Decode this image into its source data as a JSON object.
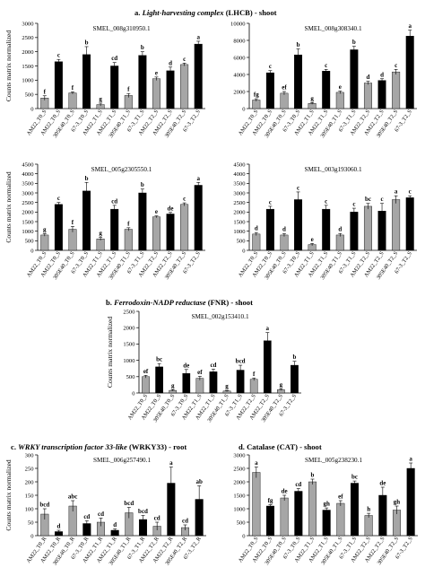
{
  "sections": {
    "a": {
      "prefix": "a. ",
      "italic": "Light-harvesting complex",
      "suffix": " (LHCB) - shoot"
    },
    "b": {
      "prefix": "b. ",
      "italic": "Ferrodoxin-NADP reductase",
      "suffix": " (FNR) - shoot"
    },
    "c": {
      "prefix": "c. ",
      "italic": "WRKY transcription factor 33-like",
      "suffix": " (WRKY33) - root"
    },
    "d": {
      "prefix": "d. ",
      "italic": "",
      "suffix": "Catalase (CAT) - shoot"
    }
  },
  "colors": {
    "light": "#a6a6a6",
    "dark": "#000000"
  },
  "chart_data": [
    {
      "type": "bar",
      "title": "SMEL_008g310950.1",
      "ylabel": "Counts matrix normalized",
      "ylim": [
        0,
        3000
      ],
      "yticks": [
        0,
        500,
        1000,
        1500,
        2000,
        2500,
        3000
      ],
      "categories": [
        "AM22_T0_S",
        "AM22_T0_S",
        "305E40_T0_S",
        "67-3_T0_S",
        "AM22_T1_S",
        "AM22_T1_S",
        "305E40_T1_S",
        "67-3_T1_S",
        "AM22_T2_S",
        "AM22_T2_S",
        "305E40_T2_S",
        "67-3_T2_S"
      ],
      "bar_colors": [
        "light",
        "dark",
        "light",
        "dark",
        "light",
        "dark",
        "light",
        "dark",
        "light",
        "dark",
        "light",
        "dark"
      ],
      "values": [
        370,
        1650,
        550,
        1900,
        140,
        1500,
        460,
        1870,
        1050,
        1330,
        1550,
        2270
      ],
      "errors": [
        80,
        80,
        40,
        280,
        50,
        120,
        70,
        130,
        60,
        130,
        50,
        100
      ],
      "letters": [
        "f",
        "c",
        "f",
        "b",
        "g",
        "cd",
        "f",
        "b",
        "e",
        "d",
        "c",
        "a"
      ]
    },
    {
      "type": "bar",
      "title": "SMEL_008g308340.1",
      "ylabel": "",
      "ylim": [
        0,
        10000
      ],
      "yticks": [
        0,
        2000,
        4000,
        6000,
        8000,
        10000
      ],
      "categories": [
        "AM22_T0_S",
        "AM22_T0_S",
        "305E40_T0_S",
        "67-3_T0_S",
        "AM22_T1_S",
        "AM22_T1_S",
        "305E40_T1_S",
        "67-3_T1_S",
        "AM22_T2_S",
        "AM22_T2_S",
        "305E40_T2_S",
        "67-3_T2_S"
      ],
      "bar_colors": [
        "light",
        "dark",
        "light",
        "dark",
        "light",
        "dark",
        "light",
        "dark",
        "light",
        "dark",
        "light",
        "dark"
      ],
      "values": [
        1000,
        4200,
        1800,
        6300,
        600,
        4400,
        1900,
        6900,
        3000,
        3300,
        4300,
        8500
      ],
      "errors": [
        150,
        250,
        200,
        700,
        100,
        200,
        150,
        400,
        200,
        200,
        300,
        700
      ],
      "letters": [
        "fg",
        "c",
        "ef",
        "b",
        "g",
        "c",
        "e",
        "b",
        "d",
        "d",
        "c",
        "a"
      ]
    },
    {
      "type": "bar",
      "title": "SMEL_005g2305550.1",
      "ylabel": "Counts matrix normalized",
      "ylim": [
        0,
        4500
      ],
      "yticks": [
        0,
        500,
        1000,
        1500,
        2000,
        2500,
        3000,
        3500,
        4000,
        4500
      ],
      "categories": [
        "AM22_T0_S",
        "AM22_T0_S",
        "305E40_T0_S",
        "67-3_T0_S",
        "AM22_T1_S",
        "AM22_T1_S",
        "305E40_T1_S",
        "67-3_T1_S",
        "AM22_T2_S",
        "AM22_T2_S",
        "305E40_T2_S",
        "67-3_T2_S"
      ],
      "bar_colors": [
        "light",
        "dark",
        "light",
        "dark",
        "light",
        "dark",
        "light",
        "dark",
        "light",
        "dark",
        "light",
        "dark"
      ],
      "values": [
        800,
        2400,
        1100,
        3100,
        600,
        2150,
        1100,
        3000,
        1750,
        1900,
        2400,
        3400
      ],
      "errors": [
        60,
        100,
        150,
        450,
        80,
        200,
        80,
        200,
        50,
        80,
        80,
        150
      ],
      "letters": [
        "g",
        "c",
        "f",
        "b",
        "g",
        "cd",
        "f",
        "b",
        "e",
        "de",
        "c",
        "a"
      ]
    },
    {
      "type": "bar",
      "title": "SMEL_003g193060.1",
      "ylabel": "",
      "ylim": [
        0,
        4500
      ],
      "yticks": [
        0,
        500,
        1000,
        1500,
        2000,
        2500,
        3000,
        3500,
        4000,
        4500
      ],
      "categories": [
        "AM22_T0_S",
        "AM22_T0_S",
        "305E40_T0_S",
        "67-3_T0_S",
        "AM22_T1_S",
        "AM22_T1_S",
        "305E40_T1_S",
        "67-3_T1_S",
        "AM22_T2_S",
        "AM22_T2_S",
        "305E40_T2_S",
        "67-3_T2_S"
      ],
      "bar_colors": [
        "light",
        "dark",
        "light",
        "dark",
        "light",
        "dark",
        "light",
        "dark",
        "light",
        "dark",
        "light",
        "dark"
      ],
      "values": [
        850,
        2150,
        800,
        2650,
        300,
        2150,
        800,
        2000,
        2300,
        2050,
        2650,
        2750
      ],
      "errors": [
        80,
        150,
        80,
        400,
        60,
        200,
        80,
        200,
        150,
        400,
        200,
        100
      ],
      "letters": [
        "d",
        "c",
        "d",
        "c",
        "e",
        "c",
        "d",
        "c",
        "bc",
        "c",
        "a",
        "c"
      ]
    },
    {
      "type": "bar",
      "title": "SMEL_002g153410.1",
      "ylabel": "Counts matrix normalized",
      "ylim": [
        0,
        2500
      ],
      "yticks": [
        0,
        500,
        1000,
        1500,
        2000,
        2500
      ],
      "categories": [
        "AM22_T0_S",
        "AM22_T0_S",
        "305E40_T0_S",
        "67-3_T0_S",
        "AM22_T1_S",
        "AM22_T1_S",
        "305E40_T1_S",
        "67-3_T1_S",
        "AM22_T2_S",
        "AM22_T2_S",
        "305E40_T2_S",
        "67-3_T2_S"
      ],
      "bar_colors": [
        "light",
        "dark",
        "light",
        "dark",
        "light",
        "dark",
        "light",
        "dark",
        "light",
        "dark",
        "light",
        "dark"
      ],
      "values": [
        500,
        800,
        80,
        600,
        450,
        650,
        60,
        700,
        420,
        1600,
        100,
        850
      ],
      "errors": [
        40,
        100,
        20,
        120,
        60,
        80,
        20,
        150,
        40,
        250,
        20,
        120
      ],
      "letters": [
        "ef",
        "bc",
        "g",
        "de",
        "ef",
        "cd",
        "g",
        "bcd",
        "f",
        "a",
        "g",
        "b"
      ]
    },
    {
      "type": "bar",
      "title": "SMEL_006g257490.1",
      "ylabel": "Counts matrix normalized",
      "ylim": [
        0,
        300
      ],
      "yticks": [
        0,
        50,
        100,
        150,
        200,
        250,
        300
      ],
      "categories": [
        "AM22_T0_R",
        "AM22_T0_R",
        "305E40_T0_R",
        "67-3_T0_R",
        "AM22_T1_R",
        "AM22_T1_R",
        "305E40_T1_R",
        "67-3_T1_R",
        "AM22_T2_R",
        "AM22_T2_R",
        "305E40_T2_R",
        "67-3_T2_R"
      ],
      "bar_colors": [
        "light",
        "dark",
        "light",
        "dark",
        "light",
        "dark",
        "light",
        "dark",
        "light",
        "dark",
        "light",
        "dark"
      ],
      "values": [
        80,
        15,
        110,
        45,
        50,
        20,
        85,
        60,
        35,
        195,
        30,
        135
      ],
      "errors": [
        20,
        5,
        20,
        10,
        15,
        5,
        20,
        15,
        15,
        60,
        10,
        50
      ],
      "letters": [
        "bcd",
        "d",
        "abc",
        "cd",
        "cd",
        "d",
        "bcd",
        "bcd",
        "cd",
        "a",
        "cd",
        "ab"
      ]
    },
    {
      "type": "bar",
      "title": "SMEL_005g238230.1",
      "ylabel": "",
      "ylim": [
        0,
        3000
      ],
      "yticks": [
        0,
        500,
        1000,
        1500,
        2000,
        2500,
        3000
      ],
      "categories": [
        "AM22_T0_S",
        "AM22_T0_S",
        "305E40_T0_S",
        "67-3_T0_S",
        "AM22_T1_S",
        "AM22_T1_S",
        "305E40_T1_S",
        "67-3_T1_S",
        "AM22_T2_S",
        "AM22_T2_S",
        "305E40_T2_S",
        "67-3_T2_S"
      ],
      "bar_colors": [
        "light",
        "dark",
        "light",
        "dark",
        "light",
        "dark",
        "light",
        "dark",
        "light",
        "dark",
        "light",
        "dark"
      ],
      "values": [
        2350,
        1100,
        1400,
        1650,
        2000,
        950,
        1200,
        1950,
        750,
        1500,
        950,
        2500
      ],
      "errors": [
        200,
        50,
        100,
        100,
        100,
        80,
        100,
        80,
        80,
        300,
        150,
        200
      ],
      "letters": [
        "a",
        "fg",
        "de",
        "cd",
        "b",
        "gh",
        "ef",
        "bc",
        "h",
        "de",
        "gh",
        "a"
      ]
    }
  ]
}
